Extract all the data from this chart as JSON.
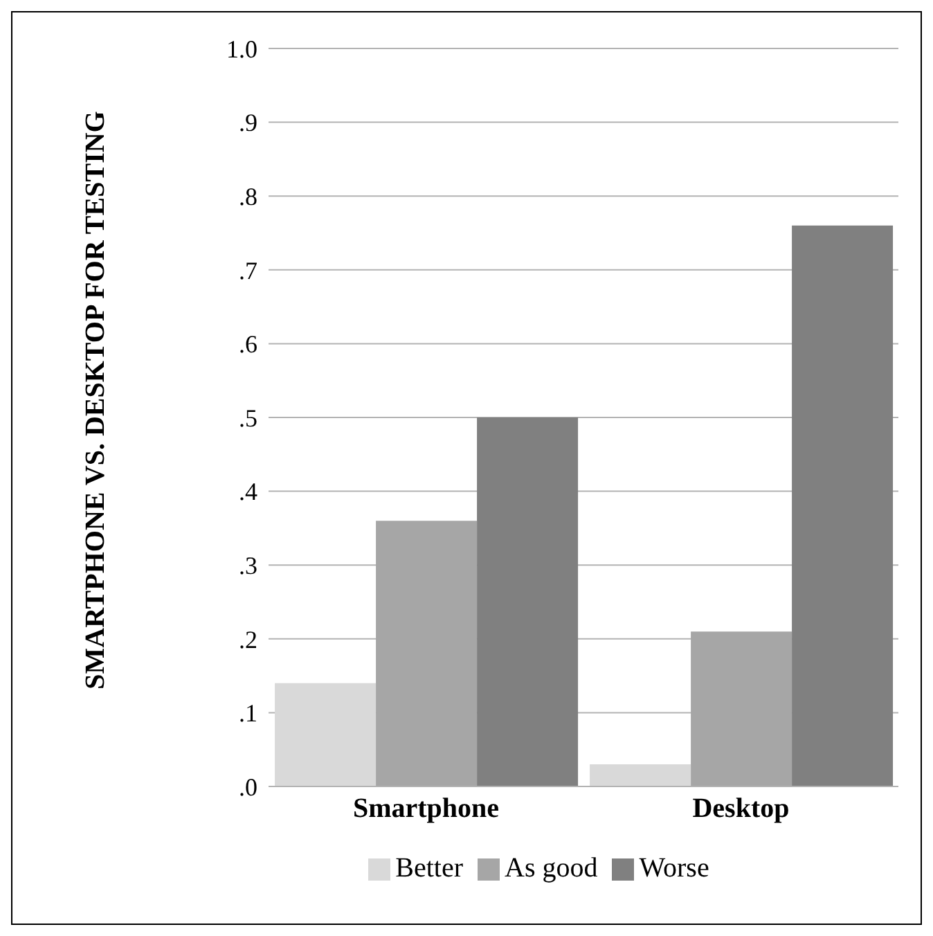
{
  "chart_data": {
    "type": "bar",
    "ylabel": "SMARTPHONE VS. DESKTOP FOR TESTING",
    "categories": [
      "Smartphone",
      "Desktop"
    ],
    "series": [
      {
        "name": "Better",
        "color": "#d9d9d9",
        "values": [
          0.14,
          0.03
        ]
      },
      {
        "name": "As good",
        "color": "#a6a6a6",
        "values": [
          0.36,
          0.21
        ]
      },
      {
        "name": "Worse",
        "color": "#808080",
        "values": [
          0.5,
          0.76
        ]
      }
    ],
    "ylim": [
      0,
      1
    ],
    "yticks": [
      {
        "value": 0,
        "label": ".0"
      },
      {
        "value": 0.1,
        "label": ".1"
      },
      {
        "value": 0.2,
        "label": ".2"
      },
      {
        "value": 0.3,
        "label": ".3"
      },
      {
        "value": 0.4,
        "label": ".4"
      },
      {
        "value": 0.5,
        "label": ".5"
      },
      {
        "value": 0.6,
        "label": ".6"
      },
      {
        "value": 0.7,
        "label": ".7"
      },
      {
        "value": 0.8,
        "label": ".8"
      },
      {
        "value": 0.9,
        "label": ".9"
      },
      {
        "value": 1,
        "label": "1.0"
      }
    ],
    "grid": "y",
    "legend": "bottom"
  }
}
